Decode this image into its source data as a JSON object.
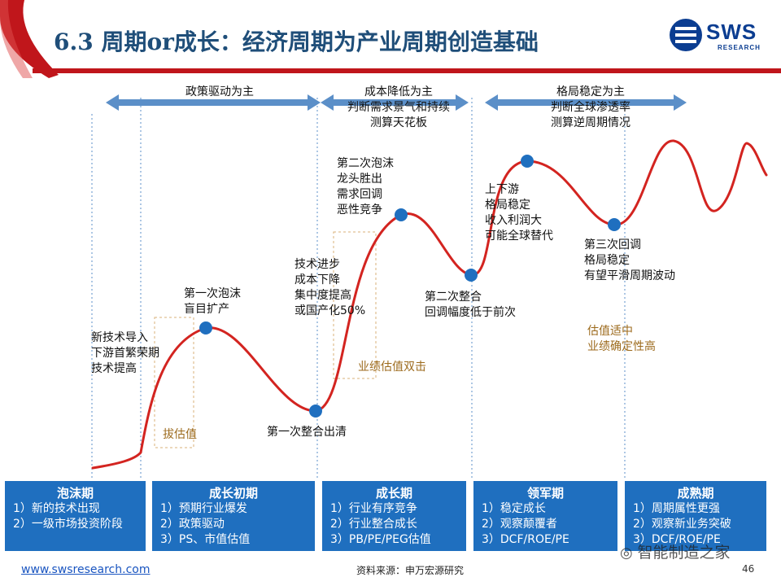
{
  "slide": {
    "title": "6.3 周期or成长：经济周期为产业周期创造基础",
    "page_number": "46",
    "footer_link": "www.swsresearch.com",
    "source": "资料来源：申万宏源研究",
    "watermark": "智能制造之家",
    "logo": {
      "text": "SWS",
      "sub": "RESEARCH"
    },
    "colors": {
      "accent_red": "#c0161b",
      "blue": "#1f6fbf",
      "curve": "#d32420",
      "dot": "#1f6fbf",
      "arrow": "#5b8fc8",
      "gold": "#9c6a1c"
    }
  },
  "phase_headers": [
    {
      "text": "政策驱动为主"
    },
    {
      "text": "成本降低为主\n判断需求景气和持续\n测算天花板"
    },
    {
      "text": "格局稳定为主\n判断全球渗透率\n测算逆周期情况"
    }
  ],
  "annotations": {
    "a1": "新技术导入\n下游首繁荣期\n技术提高",
    "a2": "第一次泡沫\n盲目扩产",
    "a3": "第一次整合出清",
    "a4": "技术进步\n成本下降\n集中度提高\n或国产化50%",
    "a5": "第二次泡沫\n龙头胜出\n需求回调\n恶性竞争",
    "a6": "第二次整合\n回调幅度低于前次",
    "a7": "上下游\n格局稳定\n收入利润大\n可能全球替代",
    "a8": "第三次回调\n格局稳定\n有望平滑周期波动",
    "valuation_up": "拔估值",
    "double_hit": "业绩估值双击",
    "valuation_stable": "估值适中\n业绩确定性高"
  },
  "stages": [
    {
      "name": "泡沫期",
      "items": [
        "1）新的技术出现",
        "2）一级市场投资阶段"
      ]
    },
    {
      "name": "成长初期",
      "items": [
        "1）预期行业爆发",
        "2）政策驱动",
        "3）PS、市值估值"
      ]
    },
    {
      "name": "成长期",
      "items": [
        "1）行业有序竞争",
        "2）行业整合成长",
        "3）PB/PE/PEG估值"
      ]
    },
    {
      "name": "领军期",
      "items": [
        "1）稳定成长",
        "2）观察颠覆者",
        "3）DCF/ROE/PE"
      ]
    },
    {
      "name": "成熟期",
      "items": [
        "1）周期属性更强",
        "2）观察新业务突破",
        "3）DCF/ROE/PE"
      ]
    }
  ]
}
